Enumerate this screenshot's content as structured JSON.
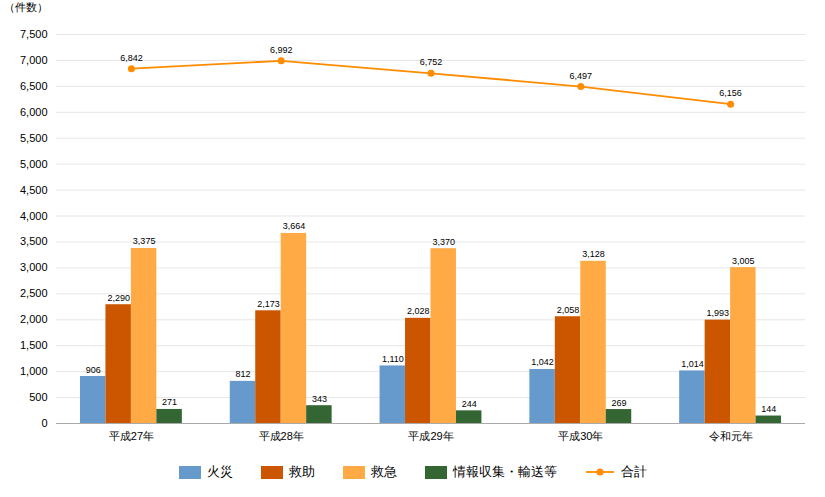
{
  "chart_data": {
    "type": "bar",
    "categories": [
      "平成27年",
      "平成28年",
      "平成29年",
      "平成30年",
      "令和元年"
    ],
    "series": [
      {
        "name": "火災",
        "color": "#6699cc",
        "values": [
          906,
          812,
          1110,
          1042,
          1014
        ],
        "value_labels": [
          "906",
          "812",
          "1,110",
          "1,042",
          "1,014"
        ]
      },
      {
        "name": "救助",
        "color": "#cc5500",
        "values": [
          2290,
          2173,
          2028,
          2058,
          1993
        ],
        "value_labels": [
          "2,290",
          "2,173",
          "2,028",
          "2,058",
          "1,993"
        ]
      },
      {
        "name": "救急",
        "color": "#ffaa44",
        "values": [
          3375,
          3664,
          3370,
          3128,
          3005
        ],
        "value_labels": [
          "3,375",
          "3,664",
          "3,370",
          "3,128",
          "3,005"
        ]
      },
      {
        "name": "情報収集・輸送等",
        "color": "#336633",
        "values": [
          271,
          343,
          244,
          269,
          144
        ]
      },
      {
        "name": "合計",
        "type": "line",
        "marker": "circle",
        "color": "#ff8c00",
        "values": [
          6842,
          6992,
          6752,
          6497,
          6156
        ],
        "value_labels": [
          "6,842",
          "6,992",
          "6,752",
          "6,497",
          "6,156"
        ]
      }
    ],
    "ylabel": "（件数）",
    "ylim": [
      0,
      7500
    ],
    "yticks": [
      0,
      500,
      {
        "value": 1000,
        "label": "1,000"
      },
      {
        "value": 1500,
        "label": "1,500"
      },
      {
        "value": 2000,
        "label": "2,000"
      },
      {
        "value": 2500,
        "label": "2,500"
      },
      {
        "value": 3000,
        "label": "3,000"
      },
      {
        "value": 3500,
        "label": "3,500"
      },
      {
        "value": 4000,
        "label": "4,000"
      },
      {
        "value": 4500,
        "label": "4,500"
      },
      {
        "value": 5000,
        "label": "5,000"
      },
      {
        "value": 5500,
        "label": "5,500"
      },
      {
        "value": 6000,
        "label": "6,000"
      },
      {
        "value": 6500,
        "label": "6,500"
      },
      {
        "value": 7000,
        "label": "7,000"
      },
      {
        "value": 7500,
        "label": "7,500"
      }
    ],
    "grid": true,
    "data_labels": true,
    "legend": "bottom"
  }
}
